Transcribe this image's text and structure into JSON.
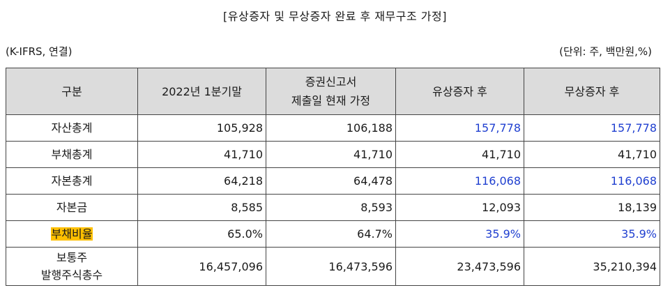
{
  "title": "[유상증자 및 무상증자 완료 후 재무구조 가정]",
  "basis": "(K-IFRS, 연결)",
  "unit": "(단위: 주, 백만원,%)",
  "headers": {
    "h0": "구분",
    "h1": "2022년 1분기말",
    "h2_line1": "증권신고서",
    "h2_line2": "제출일 현재 가정",
    "h3": "유상증자 후",
    "h4": "무상증자 후"
  },
  "rows": [
    {
      "label": "자산총계",
      "v1": "105,928",
      "v2": "106,188",
      "v3": "157,778",
      "v4": "157,778"
    },
    {
      "label": "부채총계",
      "v1": "41,710",
      "v2": "41,710",
      "v3": "41,710",
      "v4": "41,710"
    },
    {
      "label": "자본총계",
      "v1": "64,218",
      "v2": "64,478",
      "v3": "116,068",
      "v4": "116,068"
    },
    {
      "label": "자본금",
      "v1": "8,585",
      "v2": "8,593",
      "v3": "12,093",
      "v4": "18,139"
    },
    {
      "label": "부채비율",
      "v1": "65.0%",
      "v2": "64.7%",
      "v3": "35.9%",
      "v4": "35.9%"
    },
    {
      "label_line1": "보통주",
      "label_line2": "발행주식총수",
      "v1": "16,457,096",
      "v2": "16,473,596",
      "v3": "23,473,596",
      "v4": "35,210,394"
    }
  ],
  "colors": {
    "highlight_values": "#1f3fd0",
    "header_bg": "#dcdcdc",
    "label_highlight": "#ffc000"
  }
}
